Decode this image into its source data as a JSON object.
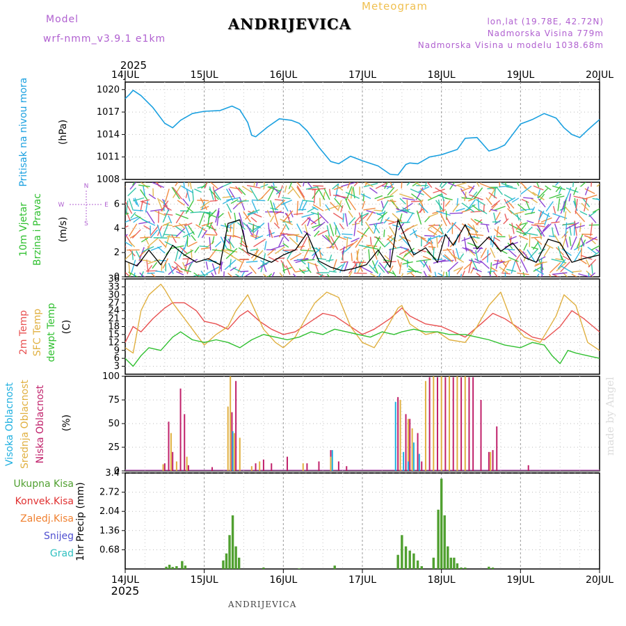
{
  "header": {
    "model_label": "Model",
    "model_version": "wrf-nmm_v3.9.1  e1km",
    "title": "ANDRIJEVICA",
    "subtitle": "Meteogram",
    "lonlat": "lon,lat (19.78E, 42.72N)",
    "elevation": "Nadmorska Visina 779m",
    "model_elevation": "Nadmorska Visina u modelu 1038.68m",
    "year": "2025",
    "bottom_label": "ANDRIJEVICA",
    "credit": "made by Angel"
  },
  "colors": {
    "pressure": "#1aa0e0",
    "temp2m": "#e85050",
    "sfc_temp": "#e0b040",
    "dewpt": "#30c030",
    "high_cloud": "#20b0e0",
    "mid_cloud": "#e0b040",
    "low_cloud": "#c0206a",
    "total_precip": "#50a030",
    "convective": "#e03030",
    "frozen": "#f08030",
    "snow": "#5050d0",
    "hail": "#30c0c0"
  },
  "chart_data": [
    {
      "panel": "pressure",
      "type": "line",
      "ylabel_title": "Pritisak na nivou mora",
      "ylabel_unit": "(hPa)",
      "ylim": [
        1008,
        1021
      ],
      "yticks": [
        "1008",
        "1011",
        "1014",
        "1017",
        "1020"
      ],
      "xticks": [
        "14JUL",
        "15JUL",
        "16JUL",
        "17JUL",
        "18JUL",
        "19JUL",
        "20JUL"
      ],
      "series": [
        {
          "x": [
            0,
            0.05,
            0.1,
            0.2,
            0.35,
            0.5,
            0.6,
            0.7,
            0.85,
            1.0,
            1.2,
            1.35,
            1.45,
            1.55,
            1.6,
            1.65,
            1.8,
            1.95,
            2.1,
            2.2,
            2.3,
            2.45,
            2.6,
            2.7,
            2.85,
            3.0,
            3.2,
            3.35,
            3.45,
            3.55,
            3.6,
            3.7,
            3.85,
            4.0,
            4.2,
            4.3,
            4.45,
            4.55,
            4.6,
            4.7,
            4.8,
            5.0,
            5.15,
            5.3,
            5.45,
            5.55,
            5.65,
            5.75,
            5.85,
            6.0
          ],
          "y": [
            1018.8,
            1019.3,
            1019.9,
            1019.2,
            1017.6,
            1015.5,
            1014.9,
            1015.9,
            1016.8,
            1017.1,
            1017.2,
            1017.8,
            1017.3,
            1015.6,
            1013.9,
            1013.7,
            1015.0,
            1016.1,
            1015.9,
            1015.5,
            1014.5,
            1012.3,
            1010.4,
            1010.1,
            1011.1,
            1010.5,
            1009.8,
            1008.7,
            1008.6,
            1010.0,
            1010.2,
            1010.1,
            1011.0,
            1011.3,
            1012.0,
            1013.5,
            1013.6,
            1012.4,
            1011.8,
            1012.1,
            1012.6,
            1015.4,
            1016.0,
            1016.8,
            1016.2,
            1014.9,
            1014.0,
            1013.6,
            1014.6,
            1016.0
          ]
        }
      ]
    },
    {
      "panel": "wind",
      "type": "line",
      "ylabel_title": "10m Vjetar",
      "ylabel_title2": "Brzina i Pravac",
      "ylabel_unit": "(m/s)",
      "compass": [
        "N",
        "E",
        "W",
        "S"
      ],
      "ylim": [
        0,
        7.8
      ],
      "yticks": [
        "0",
        "2",
        "4",
        "6"
      ],
      "series": [
        {
          "name": "speed",
          "x": [
            0,
            0.15,
            0.3,
            0.45,
            0.6,
            0.75,
            0.9,
            1.05,
            1.2,
            1.3,
            1.45,
            1.55,
            1.7,
            1.85,
            2.0,
            2.15,
            2.3,
            2.45,
            2.6,
            2.75,
            2.9,
            3.05,
            3.2,
            3.35,
            3.45,
            3.55,
            3.65,
            3.8,
            3.95,
            4.05,
            4.15,
            4.3,
            4.45,
            4.6,
            4.75,
            4.9,
            5.05,
            5.2,
            5.35,
            5.5,
            5.65,
            5.8,
            6.0
          ],
          "y": [
            1.3,
            0.9,
            2.2,
            1.0,
            2.6,
            1.8,
            1.2,
            1.5,
            1.0,
            4.4,
            4.7,
            2.0,
            1.6,
            1.2,
            1.8,
            2.2,
            3.6,
            1.3,
            0.8,
            0.5,
            0.7,
            1.0,
            2.2,
            0.8,
            4.7,
            3.2,
            1.8,
            2.4,
            1.2,
            3.5,
            2.6,
            4.3,
            2.3,
            3.3,
            2.1,
            2.8,
            1.6,
            1.2,
            3.1,
            2.8,
            1.2,
            1.5,
            1.8
          ]
        }
      ]
    },
    {
      "panel": "temperature",
      "type": "line",
      "ylabel_title": "2m Temp",
      "ylabel_title2": "SFC Temp",
      "ylabel_title3": "dewpt Temp",
      "ylabel_unit": "(C)",
      "ylim": [
        0,
        36
      ],
      "yticks": [
        "3",
        "6",
        "9",
        "12",
        "15",
        "18",
        "21",
        "24",
        "27",
        "30",
        "33",
        "36"
      ],
      "series": [
        {
          "name": "2m Temp",
          "x": [
            0,
            0.1,
            0.2,
            0.35,
            0.5,
            0.6,
            0.75,
            0.9,
            1.0,
            1.15,
            1.3,
            1.45,
            1.55,
            1.7,
            1.85,
            2.0,
            2.15,
            2.35,
            2.5,
            2.65,
            2.8,
            3.0,
            3.15,
            3.35,
            3.5,
            3.6,
            3.8,
            4.0,
            4.15,
            4.3,
            4.5,
            4.65,
            4.8,
            5.0,
            5.15,
            5.3,
            5.5,
            5.65,
            5.8,
            6.0
          ],
          "y": [
            12,
            18,
            16,
            21,
            25,
            27,
            27,
            24,
            20,
            19,
            17,
            22,
            24,
            20,
            17,
            15,
            16,
            20,
            23,
            22,
            19,
            15,
            17,
            21,
            25,
            22,
            19,
            18,
            16,
            14,
            19,
            23,
            21,
            17,
            14,
            13,
            18,
            24,
            21,
            16
          ]
        },
        {
          "name": "SFC Temp",
          "x": [
            0,
            0.1,
            0.2,
            0.3,
            0.45,
            0.5,
            0.6,
            0.75,
            0.9,
            1.0,
            1.15,
            1.3,
            1.4,
            1.55,
            1.75,
            1.9,
            2.0,
            2.15,
            2.3,
            2.4,
            2.55,
            2.7,
            2.85,
            3.0,
            3.15,
            3.3,
            3.45,
            3.5,
            3.6,
            3.8,
            3.95,
            4.1,
            4.3,
            4.45,
            4.6,
            4.75,
            4.9,
            5.05,
            5.25,
            5.45,
            5.55,
            5.7,
            5.85,
            6.0
          ],
          "y": [
            10,
            8,
            24,
            30,
            34,
            32,
            27,
            21,
            15,
            11,
            15,
            18,
            24,
            30,
            17,
            12,
            10,
            14,
            22,
            27,
            31,
            29,
            18,
            12,
            10,
            17,
            25,
            26,
            19,
            15,
            16,
            13,
            12,
            18,
            26,
            31,
            19,
            14,
            12,
            22,
            30,
            26,
            12,
            9
          ]
        },
        {
          "name": "dewpt Temp",
          "x": [
            0,
            0.1,
            0.2,
            0.3,
            0.45,
            0.6,
            0.7,
            0.85,
            1.0,
            1.15,
            1.3,
            1.45,
            1.6,
            1.75,
            1.9,
            2.05,
            2.2,
            2.35,
            2.5,
            2.65,
            2.8,
            2.95,
            3.1,
            3.25,
            3.4,
            3.5,
            3.65,
            3.8,
            3.95,
            4.1,
            4.3,
            4.45,
            4.6,
            4.8,
            5.0,
            5.15,
            5.3,
            5.4,
            5.5,
            5.6,
            5.7,
            5.85,
            6.0
          ],
          "y": [
            6,
            3,
            7,
            10,
            9,
            14,
            16,
            13,
            12,
            13,
            12,
            10,
            13,
            15,
            14,
            13,
            14,
            16,
            15,
            17,
            16,
            15,
            14,
            16,
            15,
            16,
            17,
            16,
            16,
            15,
            15,
            14,
            13,
            11,
            10,
            12,
            11,
            7,
            4,
            9,
            8,
            7,
            6
          ]
        }
      ]
    },
    {
      "panel": "clouds",
      "type": "bar",
      "ylabel_title": "Visoka Oblacnost",
      "ylabel_title2": "Srednja Oblacnost",
      "ylabel_title3": "Niska Oblacnost",
      "ylabel_unit": "(%)",
      "ylim": [
        0,
        100
      ],
      "yticks": [
        "0",
        "25",
        "50",
        "75",
        "100"
      ],
      "series": [
        {
          "name": "low",
          "x": [
            0.5,
            0.55,
            0.6,
            0.7,
            0.75,
            0.8,
            1.1,
            1.35,
            1.4,
            1.65,
            1.75,
            1.85,
            2.05,
            2.3,
            2.45,
            2.6,
            2.7,
            2.8,
            3.45,
            3.55,
            3.6,
            3.7,
            3.75,
            3.85,
            3.95,
            4.05,
            4.15,
            4.25,
            4.35,
            4.4,
            4.5,
            4.6,
            4.65,
            4.7,
            5.1
          ],
          "y": [
            8,
            52,
            20,
            87,
            60,
            6,
            4,
            62,
            95,
            8,
            12,
            8,
            15,
            8,
            10,
            22,
            10,
            5,
            78,
            60,
            55,
            40,
            10,
            99,
            99,
            99,
            99,
            99,
            99,
            99,
            75,
            20,
            22,
            47,
            6
          ]
        },
        {
          "name": "mid",
          "x": [
            0.48,
            0.58,
            0.65,
            0.78,
            1.3,
            1.33,
            1.38,
            1.45,
            1.6,
            1.7,
            2.25,
            2.6,
            3.48,
            3.58,
            3.63,
            3.8,
            3.9,
            4.0,
            4.1,
            4.2,
            4.3,
            4.62
          ],
          "y": [
            7,
            40,
            10,
            15,
            68,
            100,
            40,
            35,
            5,
            10,
            8,
            15,
            75,
            55,
            45,
            95,
            100,
            100,
            100,
            100,
            100,
            20
          ]
        },
        {
          "name": "high",
          "x": [
            1.36,
            2.62,
            3.42,
            3.52,
            3.58,
            3.65,
            3.72
          ],
          "y": [
            42,
            22,
            73,
            20,
            10,
            30,
            18
          ]
        }
      ]
    },
    {
      "panel": "precip",
      "type": "bar",
      "ylabel_title": "1hr Precip",
      "ylabel_unit": "(mm)",
      "legend": [
        "Ukupna Kisa",
        "Konvek.Kisa",
        "Zaledj.Kisa",
        "Snijeg",
        "Grad"
      ],
      "ylim": [
        0,
        3.4
      ],
      "yticks": [
        "0.68",
        "1.36",
        "2.04",
        "2.72",
        "3.4"
      ],
      "series": [
        {
          "name": "total",
          "x": [
            0.52,
            0.56,
            0.6,
            0.65,
            0.72,
            0.76,
            1.24,
            1.28,
            1.32,
            1.36,
            1.4,
            1.44,
            1.75,
            2.2,
            2.65,
            3.45,
            3.5,
            3.55,
            3.6,
            3.65,
            3.7,
            3.75,
            3.9,
            3.96,
            4.0,
            4.04,
            4.08,
            4.12,
            4.16,
            4.2,
            4.25,
            4.3,
            4.6,
            4.65
          ],
          "y": [
            0.08,
            0.15,
            0.07,
            0.1,
            0.28,
            0.12,
            0.3,
            0.55,
            1.2,
            1.9,
            0.8,
            0.4,
            0.05,
            0.02,
            0.12,
            0.5,
            1.2,
            0.8,
            0.65,
            0.55,
            0.3,
            0.1,
            0.4,
            2.1,
            3.2,
            1.9,
            0.8,
            0.4,
            0.4,
            0.2,
            0.05,
            0.05,
            0.08,
            0.05
          ]
        }
      ]
    }
  ]
}
